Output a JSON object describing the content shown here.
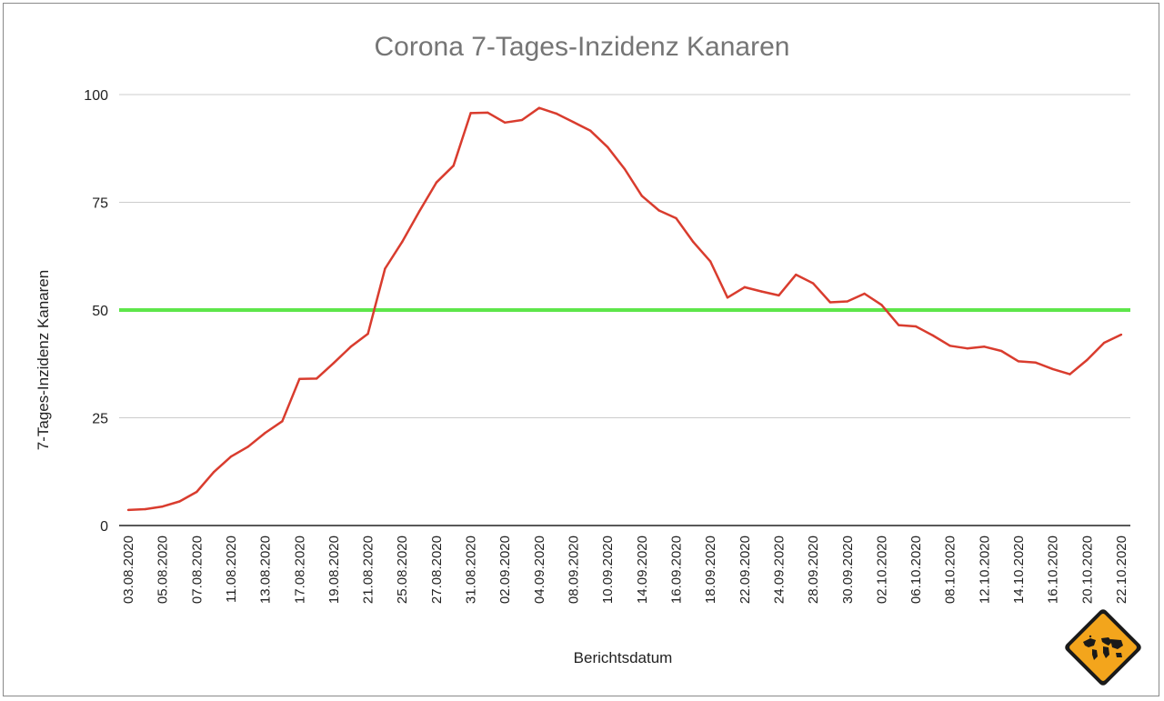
{
  "chart_data": {
    "type": "line",
    "title": "Corona 7-Tages-Inzidenz Kanaren",
    "xlabel": "Berichtsdatum",
    "ylabel": "7-Tages-Inzidenz Kanaren",
    "ylim": [
      0,
      100
    ],
    "yticks": [
      0,
      25,
      50,
      75,
      100
    ],
    "grid": true,
    "x": [
      "03.08.2020",
      "04.08.2020",
      "05.08.2020",
      "06.08.2020",
      "07.08.2020",
      "10.08.2020",
      "11.08.2020",
      "12.08.2020",
      "13.08.2020",
      "14.08.2020",
      "17.08.2020",
      "18.08.2020",
      "19.08.2020",
      "20.08.2020",
      "21.08.2020",
      "24.08.2020",
      "25.08.2020",
      "26.08.2020",
      "27.08.2020",
      "28.08.2020",
      "31.08.2020",
      "01.09.2020",
      "02.09.2020",
      "03.09.2020",
      "04.09.2020",
      "07.09.2020",
      "08.09.2020",
      "09.09.2020",
      "10.09.2020",
      "11.09.2020",
      "14.09.2020",
      "15.09.2020",
      "16.09.2020",
      "17.09.2020",
      "18.09.2020",
      "21.09.2020",
      "22.09.2020",
      "23.09.2020",
      "24.09.2020",
      "25.09.2020",
      "28.09.2020",
      "29.09.2020",
      "30.09.2020",
      "01.10.2020",
      "02.10.2020",
      "05.10.2020",
      "06.10.2020",
      "07.10.2020",
      "08.10.2020",
      "09.10.2020",
      "12.10.2020",
      "13.10.2020",
      "14.10.2020",
      "15.10.2020",
      "16.10.2020",
      "19.10.2020",
      "20.10.2020",
      "21.10.2020",
      "22.10.2020"
    ],
    "x_tick_labels": [
      "03.08.2020",
      "05.08.2020",
      "07.08.2020",
      "11.08.2020",
      "13.08.2020",
      "17.08.2020",
      "19.08.2020",
      "21.08.2020",
      "25.08.2020",
      "27.08.2020",
      "31.08.2020",
      "02.09.2020",
      "04.09.2020",
      "08.09.2020",
      "10.09.2020",
      "14.09.2020",
      "16.09.2020",
      "18.09.2020",
      "22.09.2020",
      "24.09.2020",
      "28.09.2020",
      "30.09.2020",
      "02.10.2020",
      "06.10.2020",
      "08.10.2020",
      "12.10.2020",
      "14.10.2020",
      "16.10.2020",
      "20.10.2020",
      "22.10.2020"
    ],
    "series": [
      {
        "color": "#d93c2e",
        "values": [
          3.6,
          3.8,
          4.4,
          5.6,
          7.8,
          12.4,
          16.0,
          18.3,
          21.5,
          24.2,
          34.0,
          34.1,
          37.7,
          41.5,
          44.5,
          59.6,
          65.8,
          72.9,
          79.6,
          83.5,
          95.7,
          95.8,
          93.5,
          94.1,
          96.9,
          95.6,
          93.6,
          91.6,
          87.8,
          82.7,
          76.5,
          73.1,
          71.3,
          65.8,
          61.3,
          52.9,
          55.3,
          54.3,
          53.4,
          58.2,
          56.2,
          51.8,
          52.0,
          53.8,
          51.2,
          46.5,
          46.2,
          44.1,
          41.7,
          41.1,
          41.5,
          40.5,
          38.1,
          37.8,
          36.3,
          35.1,
          38.4,
          42.4,
          44.3
        ]
      }
    ],
    "reference_line": {
      "value": 50,
      "color": "#5ee64a"
    }
  },
  "colors": {
    "gridline": "#cccccc",
    "axis": "#222222"
  },
  "logo": {
    "icon": "world-map-warning-sign-icon",
    "fill": "#f3a51c",
    "border": "#1a1a1a"
  }
}
